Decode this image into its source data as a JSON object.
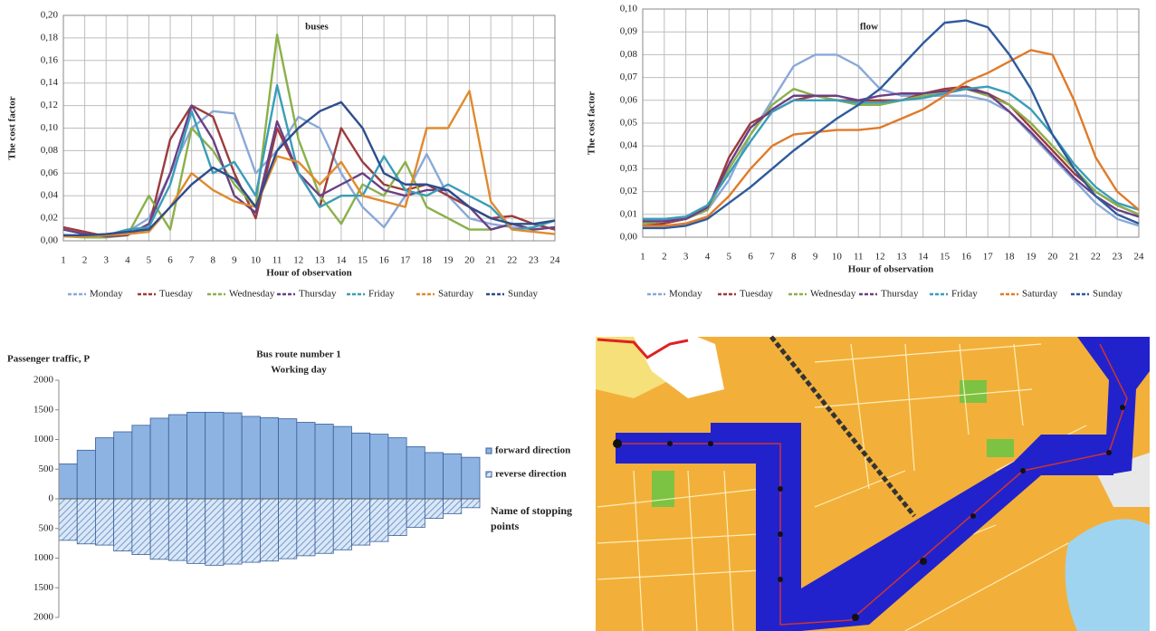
{
  "chart_data": [
    {
      "type": "line",
      "title": "buses",
      "xlabel": "Hour of observation",
      "ylabel": "The cost factor",
      "x": [
        1,
        2,
        3,
        4,
        5,
        6,
        7,
        8,
        9,
        10,
        11,
        12,
        13,
        14,
        15,
        16,
        17,
        18,
        19,
        20,
        21,
        22,
        23,
        24
      ],
      "xlim": [
        1,
        24
      ],
      "xticks": [
        1,
        2,
        3,
        4,
        5,
        6,
        7,
        8,
        9,
        10,
        11,
        12,
        13,
        14,
        15,
        16,
        17,
        18,
        19,
        20,
        21,
        22,
        23,
        24
      ],
      "ylim": [
        0,
        0.2
      ],
      "yticks": [
        {
          "value": 0,
          "label": "0,00"
        },
        {
          "value": 0.02,
          "label": "0,02"
        },
        {
          "value": 0.04,
          "label": "0,04"
        },
        {
          "value": 0.06,
          "label": "0,06"
        },
        {
          "value": 0.08,
          "label": "0,08"
        },
        {
          "value": 0.1,
          "label": "0,10"
        },
        {
          "value": 0.12,
          "label": "0,12"
        },
        {
          "value": 0.14,
          "label": "0,14"
        },
        {
          "value": 0.16,
          "label": "0,16"
        },
        {
          "value": 0.18,
          "label": "0,18"
        },
        {
          "value": 0.2,
          "label": "0,20"
        }
      ],
      "grid": true,
      "series": [
        {
          "name": "Monday",
          "color": "#8aa8d8",
          "values": [
            0.005,
            0.004,
            0.005,
            0.008,
            0.02,
            0.06,
            0.1,
            0.115,
            0.113,
            0.06,
            0.08,
            0.11,
            0.1,
            0.06,
            0.03,
            0.012,
            0.04,
            0.077,
            0.04,
            0.02,
            0.015,
            0.012,
            0.01,
            0.012
          ]
        },
        {
          "name": "Tuesday",
          "color": "#9c3b3b",
          "values": [
            0.012,
            0.008,
            0.004,
            0.006,
            0.012,
            0.09,
            0.12,
            0.11,
            0.06,
            0.02,
            0.1,
            0.06,
            0.03,
            0.1,
            0.07,
            0.05,
            0.045,
            0.05,
            0.04,
            0.03,
            0.02,
            0.022,
            0.015,
            0.01
          ]
        },
        {
          "name": "Wednesday",
          "color": "#8ab04a",
          "values": [
            0.004,
            0.003,
            0.003,
            0.005,
            0.04,
            0.01,
            0.1,
            0.08,
            0.05,
            0.03,
            0.183,
            0.09,
            0.04,
            0.015,
            0.05,
            0.04,
            0.07,
            0.03,
            0.02,
            0.01,
            0.01,
            0.015,
            0.01,
            0.012
          ]
        },
        {
          "name": "Thursday",
          "color": "#6b3f86",
          "values": [
            0.01,
            0.006,
            0.004,
            0.005,
            0.015,
            0.06,
            0.12,
            0.09,
            0.04,
            0.025,
            0.106,
            0.06,
            0.04,
            0.05,
            0.06,
            0.045,
            0.04,
            0.045,
            0.045,
            0.03,
            0.01,
            0.015,
            0.01,
            0.012
          ]
        },
        {
          "name": "Friday",
          "color": "#3a9db8",
          "values": [
            0.005,
            0.004,
            0.005,
            0.01,
            0.012,
            0.05,
            0.115,
            0.06,
            0.07,
            0.04,
            0.138,
            0.06,
            0.03,
            0.04,
            0.04,
            0.075,
            0.045,
            0.04,
            0.05,
            0.04,
            0.03,
            0.01,
            0.012,
            0.018
          ]
        },
        {
          "name": "Saturday",
          "color": "#e08a2e",
          "values": [
            0.004,
            0.004,
            0.005,
            0.006,
            0.008,
            0.03,
            0.06,
            0.045,
            0.035,
            0.03,
            0.075,
            0.07,
            0.05,
            0.07,
            0.04,
            0.035,
            0.03,
            0.1,
            0.1,
            0.133,
            0.035,
            0.01,
            0.008,
            0.006
          ]
        },
        {
          "name": "Sunday",
          "color": "#2e4d8c",
          "values": [
            0.005,
            0.005,
            0.006,
            0.008,
            0.01,
            0.03,
            0.05,
            0.065,
            0.055,
            0.03,
            0.08,
            0.1,
            0.115,
            0.123,
            0.1,
            0.06,
            0.05,
            0.05,
            0.045,
            0.03,
            0.02,
            0.015,
            0.015,
            0.018
          ]
        }
      ]
    },
    {
      "type": "line",
      "title": "flow",
      "xlabel": "Hour of observation",
      "ylabel": "The cost factor",
      "x": [
        1,
        2,
        3,
        4,
        5,
        6,
        7,
        8,
        9,
        10,
        11,
        12,
        13,
        14,
        15,
        16,
        17,
        18,
        19,
        20,
        21,
        22,
        23,
        24
      ],
      "xlim": [
        1,
        24
      ],
      "xticks": [
        1,
        2,
        3,
        4,
        5,
        6,
        7,
        8,
        9,
        10,
        11,
        12,
        13,
        14,
        15,
        16,
        17,
        18,
        19,
        20,
        21,
        22,
        23,
        24
      ],
      "ylim": [
        0,
        0.1
      ],
      "yticks": [
        {
          "value": 0,
          "label": "0,00"
        },
        {
          "value": 0.01,
          "label": "0,01"
        },
        {
          "value": 0.02,
          "label": "0,02"
        },
        {
          "value": 0.03,
          "label": "0,03"
        },
        {
          "value": 0.04,
          "label": "0,04"
        },
        {
          "value": 0.05,
          "label": "0,05"
        },
        {
          "value": 0.06,
          "label": "0,06"
        },
        {
          "value": 0.07,
          "label": "0,07"
        },
        {
          "value": 0.08,
          "label": "0,08"
        },
        {
          "value": 0.09,
          "label": "0,09"
        },
        {
          "value": 0.1,
          "label": "0,10"
        }
      ],
      "grid": true,
      "series": [
        {
          "name": "Monday",
          "color": "#8aa8d8",
          "values": [
            0.008,
            0.008,
            0.008,
            0.012,
            0.025,
            0.045,
            0.06,
            0.075,
            0.08,
            0.08,
            0.075,
            0.065,
            0.062,
            0.062,
            0.062,
            0.062,
            0.06,
            0.055,
            0.045,
            0.035,
            0.025,
            0.015,
            0.008,
            0.005
          ]
        },
        {
          "name": "Tuesday",
          "color": "#9c3b3b",
          "values": [
            0.005,
            0.006,
            0.008,
            0.012,
            0.035,
            0.05,
            0.055,
            0.06,
            0.062,
            0.06,
            0.06,
            0.06,
            0.06,
            0.063,
            0.065,
            0.066,
            0.063,
            0.058,
            0.048,
            0.038,
            0.028,
            0.02,
            0.014,
            0.01
          ]
        },
        {
          "name": "Wednesday",
          "color": "#8ab04a",
          "values": [
            0.006,
            0.007,
            0.008,
            0.012,
            0.03,
            0.045,
            0.058,
            0.065,
            0.062,
            0.06,
            0.058,
            0.058,
            0.06,
            0.062,
            0.063,
            0.065,
            0.062,
            0.058,
            0.05,
            0.04,
            0.03,
            0.02,
            0.014,
            0.01
          ]
        },
        {
          "name": "Thursday",
          "color": "#6b3f86",
          "values": [
            0.007,
            0.007,
            0.008,
            0.013,
            0.032,
            0.048,
            0.056,
            0.062,
            0.062,
            0.062,
            0.06,
            0.062,
            0.063,
            0.063,
            0.064,
            0.065,
            0.063,
            0.055,
            0.046,
            0.036,
            0.026,
            0.018,
            0.012,
            0.009
          ]
        },
        {
          "name": "Friday",
          "color": "#3a9db8",
          "values": [
            0.008,
            0.008,
            0.009,
            0.014,
            0.028,
            0.042,
            0.055,
            0.06,
            0.06,
            0.06,
            0.059,
            0.059,
            0.06,
            0.061,
            0.063,
            0.065,
            0.066,
            0.063,
            0.056,
            0.045,
            0.032,
            0.022,
            0.015,
            0.012
          ]
        },
        {
          "name": "Saturday",
          "color": "#e07b2a",
          "values": [
            0.005,
            0.005,
            0.006,
            0.009,
            0.018,
            0.03,
            0.04,
            0.045,
            0.046,
            0.047,
            0.047,
            0.048,
            0.052,
            0.056,
            0.062,
            0.068,
            0.072,
            0.077,
            0.082,
            0.08,
            0.06,
            0.035,
            0.02,
            0.012
          ]
        },
        {
          "name": "Sunday",
          "color": "#2e5a9c",
          "values": [
            0.004,
            0.004,
            0.005,
            0.008,
            0.015,
            0.022,
            0.03,
            0.038,
            0.045,
            0.052,
            0.058,
            0.065,
            0.075,
            0.085,
            0.094,
            0.095,
            0.092,
            0.08,
            0.065,
            0.045,
            0.03,
            0.018,
            0.01,
            0.006
          ]
        }
      ]
    },
    {
      "type": "bar",
      "title": "Bus route number 1",
      "subtitle": "Working day",
      "ylabel": "Passenger traffic, P",
      "annotation": "Name of stopping points",
      "categories": [
        null,
        null,
        null,
        null,
        null,
        null,
        null,
        null,
        null,
        null,
        null,
        null,
        null,
        null,
        null,
        null,
        null,
        null,
        null,
        null,
        null,
        null,
        null
      ],
      "ylim": [
        -2000,
        2000
      ],
      "yticks": [
        {
          "value": -2000,
          "label": "2000"
        },
        {
          "value": -1500,
          "label": "1500"
        },
        {
          "value": -1000,
          "label": "1000"
        },
        {
          "value": -500,
          "label": "500"
        },
        0,
        500,
        1000,
        1500,
        2000
      ],
      "series": [
        {
          "name": "forward direction",
          "color": "#8db3e2",
          "values": [
            590,
            820,
            1030,
            1130,
            1240,
            1360,
            1420,
            1460,
            1460,
            1450,
            1390,
            1370,
            1350,
            1290,
            1260,
            1220,
            1110,
            1090,
            1030,
            880,
            780,
            760,
            700
          ]
        },
        {
          "name": "reverse direction",
          "color": "#6f9bd1",
          "values": [
            -700,
            -760,
            -780,
            -880,
            -940,
            -1020,
            -1040,
            -1090,
            -1120,
            -1100,
            -1070,
            -1050,
            -1010,
            -960,
            -920,
            -860,
            -780,
            -720,
            -620,
            -480,
            -330,
            -250,
            -150
          ]
        }
      ]
    }
  ]
}
